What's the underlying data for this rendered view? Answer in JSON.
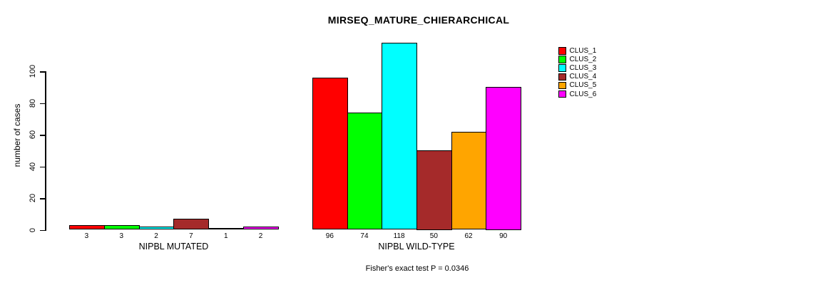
{
  "title": "MIRSEQ_MATURE_CHIERARCHICAL",
  "footer": "Fisher's exact test P = 0.0346",
  "chart_data": {
    "type": "bar",
    "title": "MIRSEQ_MATURE_CHIERARCHICAL",
    "xlabel": "",
    "ylabel": "number of cases",
    "ylim": [
      0,
      100
    ],
    "yticks": [
      0,
      20,
      40,
      60,
      80,
      100
    ],
    "grid": false,
    "legend_position": "right-outside",
    "annotation": "Fisher's exact test P = 0.0346",
    "categories": [
      "NIPBL MUTATED",
      "NIPBL WILD-TYPE"
    ],
    "series": [
      {
        "name": "CLUS_1",
        "color": "#FF0000",
        "values": [
          3,
          96
        ]
      },
      {
        "name": "CLUS_2",
        "color": "#00FF00",
        "values": [
          3,
          74
        ]
      },
      {
        "name": "CLUS_3",
        "color": "#00FFFF",
        "values": [
          2,
          118
        ]
      },
      {
        "name": "CLUS_4",
        "color": "#A52A2A",
        "values": [
          7,
          50
        ]
      },
      {
        "name": "CLUS_5",
        "color": "#FFA500",
        "values": [
          1,
          62
        ]
      },
      {
        "name": "CLUS_6",
        "color": "#FF00FF",
        "values": [
          2,
          90
        ]
      }
    ],
    "bar_value_labels": {
      "NIPBL MUTATED": [
        3,
        3,
        2,
        7,
        1,
        2
      ],
      "NIPBL WILD-TYPE": [
        96,
        74,
        118,
        50,
        62,
        90
      ]
    }
  }
}
